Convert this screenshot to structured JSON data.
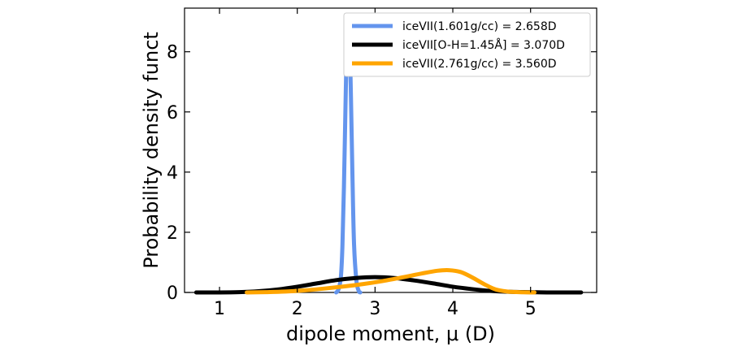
{
  "chart_data": {
    "type": "line",
    "xlabel": "dipole moment, μ (D)",
    "ylabel": "Probability density funct",
    "xlim": [
      0.55,
      5.85
    ],
    "ylim": [
      0,
      9.45
    ],
    "xticks": [
      1,
      2,
      3,
      4,
      5
    ],
    "yticks": [
      0,
      2,
      4,
      6,
      8
    ],
    "grid": false,
    "legend_position": "top-right",
    "series": [
      {
        "name": "iceVII(1.601g/cc) = 2.658D",
        "color": "#6495ED",
        "x": [
          2.5,
          2.53,
          2.56,
          2.58,
          2.6,
          2.62,
          2.64,
          2.658,
          2.67,
          2.69,
          2.71,
          2.73,
          2.76,
          2.79,
          2.81
        ],
        "y": [
          0.0,
          0.1,
          0.5,
          1.5,
          3.5,
          6.2,
          8.6,
          9.1,
          8.8,
          6.5,
          3.8,
          1.6,
          0.4,
          0.05,
          0.0
        ]
      },
      {
        "name": "iceVII[O-H=1.45Å] = 3.070D",
        "color": "#000000",
        "x": [
          0.7,
          1.0,
          1.25,
          1.5,
          1.75,
          2.0,
          2.25,
          2.5,
          2.75,
          3.0,
          3.25,
          3.5,
          3.75,
          4.0,
          4.25,
          4.5,
          4.75,
          5.0,
          5.25,
          5.65
        ],
        "y": [
          0.0,
          0.0,
          0.01,
          0.04,
          0.1,
          0.19,
          0.3,
          0.41,
          0.48,
          0.51,
          0.48,
          0.4,
          0.3,
          0.19,
          0.11,
          0.05,
          0.02,
          0.01,
          0.0,
          0.0
        ]
      },
      {
        "name": "iceVII(2.761g/cc) = 3.560D",
        "color": "#FFA500",
        "x": [
          1.35,
          1.6,
          1.85,
          2.1,
          2.35,
          2.6,
          2.85,
          3.1,
          3.35,
          3.6,
          3.8,
          3.95,
          4.1,
          4.25,
          4.4,
          4.55,
          4.7,
          4.85,
          5.05
        ],
        "y": [
          0.0,
          0.01,
          0.03,
          0.07,
          0.13,
          0.2,
          0.28,
          0.38,
          0.5,
          0.63,
          0.72,
          0.74,
          0.68,
          0.5,
          0.28,
          0.1,
          0.03,
          0.01,
          0.0
        ]
      }
    ]
  }
}
